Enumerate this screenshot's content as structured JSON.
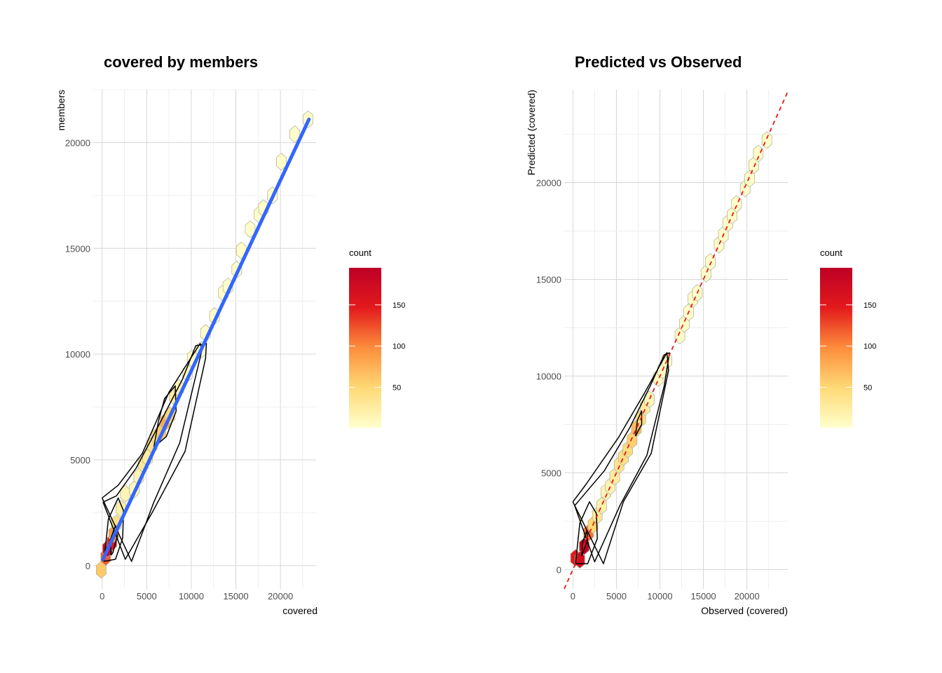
{
  "chart_data": [
    {
      "type": "scatter",
      "subtype": "hexbin-density-with-linear-fit",
      "title": "covered by members",
      "xlabel": "covered",
      "ylabel": "members",
      "xlim": [
        -1000,
        24000
      ],
      "ylim": [
        -1100,
        22500
      ],
      "x_ticks": [
        0,
        5000,
        10000,
        15000,
        20000
      ],
      "y_ticks": [
        0,
        5000,
        10000,
        15000,
        20000
      ],
      "x_tick_labels": [
        "0",
        "5000",
        "10000",
        "15000",
        "20000"
      ],
      "y_tick_labels": [
        "0",
        "5000",
        "10000",
        "15000",
        "20000"
      ],
      "legend": {
        "title": "count",
        "placement": "right",
        "range": [
          1,
          195
        ],
        "ticks": [
          50,
          100,
          150
        ],
        "tick_labels": [
          "50",
          "100",
          "150"
        ]
      },
      "colors": {
        "low": "#ffffcc",
        "mid1": "#fed976",
        "mid2": "#fd8d3c",
        "mid3": "#e31a1c",
        "high": "#bd0026",
        "fit_line": "#3366ff",
        "contour": "#000000"
      },
      "fit_line": {
        "x": [
          100,
          23200
        ],
        "y": [
          300,
          21100
        ]
      },
      "hexbins": [
        {
          "x": -100,
          "y": -200,
          "count": 60
        },
        {
          "x": 400,
          "y": 400,
          "count": 120
        },
        {
          "x": 600,
          "y": 800,
          "count": 180
        },
        {
          "x": 1100,
          "y": 1100,
          "count": 150
        },
        {
          "x": 1300,
          "y": 1500,
          "count": 90
        },
        {
          "x": 1600,
          "y": 2000,
          "count": 40
        },
        {
          "x": 2100,
          "y": 2700,
          "count": 20
        },
        {
          "x": 2600,
          "y": 3400,
          "count": 15
        },
        {
          "x": 3600,
          "y": 3600,
          "count": 10
        },
        {
          "x": 4100,
          "y": 4200,
          "count": 15
        },
        {
          "x": 4600,
          "y": 4800,
          "count": 30
        },
        {
          "x": 5100,
          "y": 5100,
          "count": 25
        },
        {
          "x": 5600,
          "y": 5700,
          "count": 35
        },
        {
          "x": 6100,
          "y": 6100,
          "count": 40
        },
        {
          "x": 6600,
          "y": 6300,
          "count": 60
        },
        {
          "x": 7100,
          "y": 6800,
          "count": 80
        },
        {
          "x": 7600,
          "y": 7100,
          "count": 50
        },
        {
          "x": 8100,
          "y": 8000,
          "count": 25
        },
        {
          "x": 8600,
          "y": 8400,
          "count": 15
        },
        {
          "x": 9600,
          "y": 9100,
          "count": 8
        },
        {
          "x": 10100,
          "y": 9800,
          "count": 5
        },
        {
          "x": 11100,
          "y": 10200,
          "count": 3
        },
        {
          "x": 11600,
          "y": 11000,
          "count": 3
        },
        {
          "x": 12600,
          "y": 11800,
          "count": 3
        },
        {
          "x": 13600,
          "y": 12900,
          "count": 2
        },
        {
          "x": 14100,
          "y": 13200,
          "count": 2
        },
        {
          "x": 15100,
          "y": 14000,
          "count": 2
        },
        {
          "x": 15600,
          "y": 14900,
          "count": 2
        },
        {
          "x": 16600,
          "y": 15900,
          "count": 2
        },
        {
          "x": 17600,
          "y": 16600,
          "count": 2
        },
        {
          "x": 18100,
          "y": 16900,
          "count": 2
        },
        {
          "x": 19100,
          "y": 17500,
          "count": 2
        },
        {
          "x": 20100,
          "y": 19100,
          "count": 2
        },
        {
          "x": 21600,
          "y": 20400,
          "count": 2
        },
        {
          "x": 23100,
          "y": 21100,
          "count": 2
        }
      ],
      "contours": [
        {
          "x": [
            1200,
            1700,
            1500,
            900,
            1000,
            1200
          ],
          "y": [
            600,
            1400,
            1900,
            1200,
            500,
            600
          ]
        },
        {
          "x": [
            5800,
            7200,
            8300,
            8200,
            7000,
            6300,
            5800
          ],
          "y": [
            5600,
            6100,
            7300,
            8500,
            7900,
            6800,
            5600
          ]
        },
        {
          "x": [
            200,
            1500,
            2300,
            2400,
            1800,
            700,
            200
          ],
          "y": [
            200,
            300,
            1300,
            2600,
            3200,
            2200,
            200
          ]
        },
        {
          "x": [
            0,
            3300,
            5800,
            8700,
            11200,
            11000,
            7500,
            4500,
            1800,
            0
          ],
          "y": [
            3200,
            200,
            3000,
            5800,
            10200,
            10500,
            8200,
            5300,
            3800,
            3200
          ]
        },
        {
          "x": [
            100,
            2600,
            5600,
            9300,
            11600,
            11700,
            10500,
            9000,
            6300,
            3800,
            1600,
            100
          ],
          "y": [
            3000,
            300,
            2500,
            5400,
            9800,
            10500,
            10400,
            8800,
            6600,
            4600,
            3300,
            3000
          ]
        }
      ]
    },
    {
      "type": "scatter",
      "subtype": "hexbin-density-with-identity-line",
      "title": "Predicted vs Observed",
      "xlabel": "Observed (covered)",
      "ylabel": "Predicted (covered)",
      "xlim": [
        -1000,
        24700
      ],
      "ylim": [
        -1000,
        24800
      ],
      "x_ticks": [
        0,
        5000,
        10000,
        15000,
        20000
      ],
      "y_ticks": [
        0,
        5000,
        10000,
        15000,
        20000
      ],
      "x_tick_labels": [
        "0",
        "5000",
        "10000",
        "15000",
        "20000"
      ],
      "y_tick_labels": [
        "0",
        "5000",
        "10000",
        "15000",
        "20000"
      ],
      "legend": {
        "title": "count",
        "placement": "right",
        "range": [
          1,
          195
        ],
        "ticks": [
          50,
          100,
          150
        ],
        "tick_labels": [
          "50",
          "100",
          "150"
        ]
      },
      "colors": {
        "low": "#ffffcc",
        "mid1": "#fed976",
        "mid2": "#fd8d3c",
        "mid3": "#e31a1c",
        "high": "#bd0026",
        "identity_line": "#e31a1c",
        "contour": "#000000"
      },
      "identity_line": {
        "x": [
          -1000,
          24700
        ],
        "y": [
          -1000,
          24700
        ]
      },
      "hexbins": [
        {
          "x": 300,
          "y": 600,
          "count": 150
        },
        {
          "x": 800,
          "y": 500,
          "count": 170
        },
        {
          "x": 1300,
          "y": 1200,
          "count": 190
        },
        {
          "x": 1800,
          "y": 1900,
          "count": 110
        },
        {
          "x": 2300,
          "y": 2300,
          "count": 50
        },
        {
          "x": 2800,
          "y": 2800,
          "count": 30
        },
        {
          "x": 3300,
          "y": 3300,
          "count": 20
        },
        {
          "x": 3800,
          "y": 4000,
          "count": 15
        },
        {
          "x": 4300,
          "y": 4300,
          "count": 15
        },
        {
          "x": 4800,
          "y": 4800,
          "count": 25
        },
        {
          "x": 5300,
          "y": 5400,
          "count": 35
        },
        {
          "x": 5800,
          "y": 5800,
          "count": 40
        },
        {
          "x": 6300,
          "y": 6200,
          "count": 45
        },
        {
          "x": 6800,
          "y": 6700,
          "count": 55
        },
        {
          "x": 7300,
          "y": 7300,
          "count": 70
        },
        {
          "x": 7800,
          "y": 7800,
          "count": 45
        },
        {
          "x": 8300,
          "y": 8400,
          "count": 25
        },
        {
          "x": 8800,
          "y": 8800,
          "count": 12
        },
        {
          "x": 9800,
          "y": 9900,
          "count": 8
        },
        {
          "x": 10300,
          "y": 10300,
          "count": 5
        },
        {
          "x": 10800,
          "y": 10800,
          "count": 4
        },
        {
          "x": 12300,
          "y": 12100,
          "count": 3
        },
        {
          "x": 12800,
          "y": 12700,
          "count": 3
        },
        {
          "x": 13300,
          "y": 13300,
          "count": 3
        },
        {
          "x": 13800,
          "y": 14000,
          "count": 2
        },
        {
          "x": 14300,
          "y": 14300,
          "count": 2
        },
        {
          "x": 15300,
          "y": 15300,
          "count": 2
        },
        {
          "x": 15800,
          "y": 15900,
          "count": 2
        },
        {
          "x": 16800,
          "y": 16800,
          "count": 2
        },
        {
          "x": 17300,
          "y": 17300,
          "count": 2
        },
        {
          "x": 17800,
          "y": 17900,
          "count": 2
        },
        {
          "x": 18300,
          "y": 18300,
          "count": 2
        },
        {
          "x": 18800,
          "y": 18900,
          "count": 2
        },
        {
          "x": 19800,
          "y": 19700,
          "count": 2
        },
        {
          "x": 20300,
          "y": 20200,
          "count": 2
        },
        {
          "x": 20800,
          "y": 20900,
          "count": 2
        },
        {
          "x": 21300,
          "y": 21500,
          "count": 2
        },
        {
          "x": 22300,
          "y": 22200,
          "count": 2
        }
      ],
      "contours": [
        {
          "x": [
            1000,
            1700,
            1600,
            1100,
            1000
          ],
          "y": [
            700,
            1500,
            2000,
            1400,
            700
          ]
        },
        {
          "x": [
            7200,
            7900,
            7900,
            7400,
            7200
          ],
          "y": [
            6900,
            7500,
            8200,
            7700,
            6900
          ]
        },
        {
          "x": [
            300,
            1700,
            2800,
            2700,
            1900,
            800,
            300
          ],
          "y": [
            300,
            300,
            1600,
            2900,
            3500,
            2400,
            300
          ]
        },
        {
          "x": [
            0,
            3500,
            5800,
            9000,
            11000,
            10800,
            8200,
            5200,
            1500,
            0
          ],
          "y": [
            3500,
            300,
            3500,
            6000,
            10300,
            11200,
            9100,
            6800,
            4400,
            3500
          ]
        },
        {
          "x": [
            200,
            2500,
            5400,
            8500,
            10500,
            11100,
            10500,
            8900,
            6500,
            3600,
            200
          ],
          "y": [
            3300,
            400,
            3300,
            5900,
            9500,
            11200,
            11100,
            9500,
            7300,
            5100,
            3300
          ]
        }
      ]
    }
  ]
}
